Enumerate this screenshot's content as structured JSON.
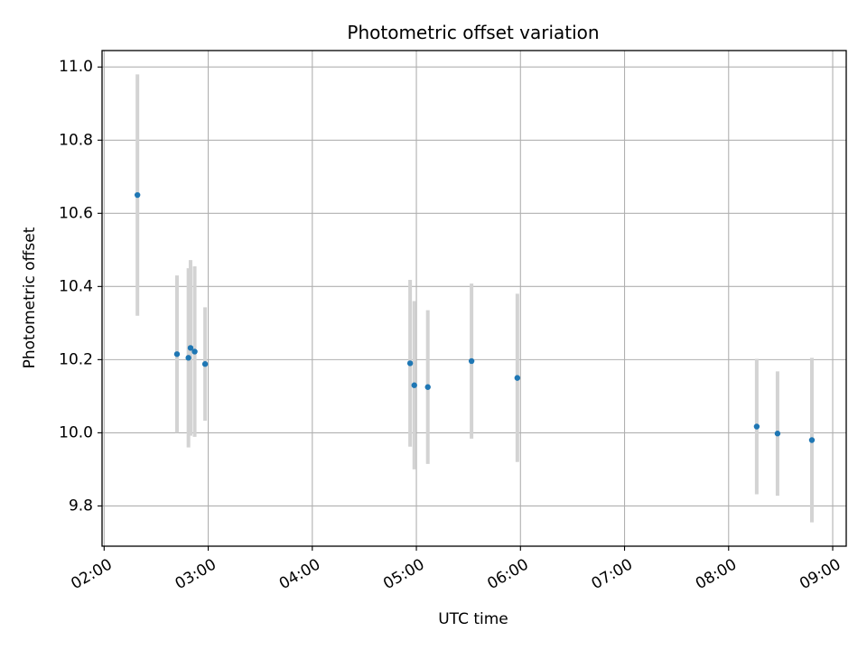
{
  "chart_data": {
    "type": "scatter",
    "title": "Photometric offset variation",
    "xlabel": "UTC time",
    "ylabel": "Photometric offset",
    "x_unit": "hours UTC",
    "xlim": [
      1.98,
      9.13
    ],
    "ylim": [
      9.69,
      11.045
    ],
    "x_ticks": [
      {
        "value": 2,
        "label": "02:00"
      },
      {
        "value": 3,
        "label": "03:00"
      },
      {
        "value": 4,
        "label": "04:00"
      },
      {
        "value": 5,
        "label": "05:00"
      },
      {
        "value": 6,
        "label": "06:00"
      },
      {
        "value": 7,
        "label": "07:00"
      },
      {
        "value": 8,
        "label": "08:00"
      },
      {
        "value": 9,
        "label": "09:00"
      }
    ],
    "y_ticks": [
      {
        "value": 9.8,
        "label": "9.8"
      },
      {
        "value": 10.0,
        "label": "10.0"
      },
      {
        "value": 10.2,
        "label": "10.2"
      },
      {
        "value": 10.4,
        "label": "10.4"
      },
      {
        "value": 10.6,
        "label": "10.6"
      },
      {
        "value": 10.8,
        "label": "10.8"
      },
      {
        "value": 11.0,
        "label": "11.0"
      }
    ],
    "grid": true,
    "marker_color": "#1f77b4",
    "errorbar_color": "#d3d3d3",
    "points": [
      {
        "time": "02:19",
        "x": 2.32,
        "y": 10.65,
        "err": 0.33
      },
      {
        "time": "02:42",
        "x": 2.7,
        "y": 10.215,
        "err": 0.215
      },
      {
        "time": "02:49",
        "x": 2.81,
        "y": 10.205,
        "err": 0.245
      },
      {
        "time": "02:50",
        "x": 2.83,
        "y": 10.232,
        "err": 0.24
      },
      {
        "time": "02:52",
        "x": 2.87,
        "y": 10.222,
        "err": 0.233
      },
      {
        "time": "02:58",
        "x": 2.97,
        "y": 10.188,
        "err": 0.155
      },
      {
        "time": "04:56",
        "x": 4.94,
        "y": 10.19,
        "err": 0.228
      },
      {
        "time": "04:58",
        "x": 4.98,
        "y": 10.13,
        "err": 0.23
      },
      {
        "time": "05:06",
        "x": 5.11,
        "y": 10.125,
        "err": 0.21
      },
      {
        "time": "05:31",
        "x": 5.53,
        "y": 10.196,
        "err": 0.212
      },
      {
        "time": "05:58",
        "x": 5.97,
        "y": 10.15,
        "err": 0.23
      },
      {
        "time": "08:16",
        "x": 8.27,
        "y": 10.017,
        "err": 0.185
      },
      {
        "time": "08:28",
        "x": 8.47,
        "y": 9.998,
        "err": 0.17
      },
      {
        "time": "08:48",
        "x": 8.8,
        "y": 9.98,
        "err": 0.225
      }
    ]
  }
}
